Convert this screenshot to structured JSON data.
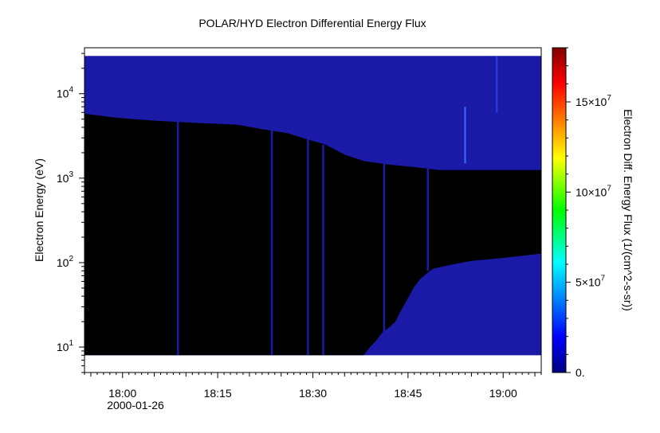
{
  "chart_data": {
    "type": "heatmap",
    "title": "POLAR/HYD  Electron Differential Energy Flux",
    "xlabel": "",
    "ylabel": "Electron Energy (eV)",
    "date_label": "2000-01-26",
    "x_range": [
      "17:54",
      "19:06"
    ],
    "x_ticks": [
      "18:00",
      "18:15",
      "18:30",
      "18:45",
      "19:00"
    ],
    "y_scale": "log",
    "y_range": [
      5,
      35000
    ],
    "y_ticks": [
      {
        "value": 10,
        "base": "10",
        "exp": "1"
      },
      {
        "value": 100,
        "base": "10",
        "exp": "2"
      },
      {
        "value": 1000,
        "base": "10",
        "exp": "3"
      },
      {
        "value": 10000,
        "base": "10",
        "exp": "4"
      }
    ],
    "energy_range_ev": [
      8,
      28000
    ],
    "colorbar": {
      "label": "Electron Diff. Energy Flux (1/(cm^2-s-sr))",
      "range": [
        0,
        180000000
      ],
      "colormap": "jet",
      "ticks": [
        {
          "value": 0,
          "base": "0.",
          "exp": ""
        },
        {
          "value": 50000000,
          "base": "5×10",
          "exp": "7"
        },
        {
          "value": 100000000,
          "base": "10×10",
          "exp": "7"
        },
        {
          "value": 150000000,
          "base": "15×10",
          "exp": "7"
        }
      ]
    },
    "background_flux_color": "#1a1aa6",
    "no_data_color": "#000000",
    "no_data_upper_boundary_ev": [
      [
        "17:54",
        5800
      ],
      [
        "17:59",
        5200
      ],
      [
        "18:05",
        4800
      ],
      [
        "18:12",
        4500
      ],
      [
        "18:18",
        4300
      ],
      [
        "18:22",
        3800
      ],
      [
        "18:26",
        3400
      ],
      [
        "18:29",
        2900
      ],
      [
        "18:32",
        2500
      ],
      [
        "18:35",
        1900
      ],
      [
        "18:38",
        1600
      ],
      [
        "18:42",
        1450
      ],
      [
        "18:46",
        1350
      ],
      [
        "18:50",
        1250
      ],
      [
        "18:55",
        1250
      ],
      [
        "19:00",
        1250
      ],
      [
        "19:06",
        1250
      ]
    ],
    "no_data_lower_boundary_ev": [
      [
        "17:54",
        8
      ],
      [
        "18:38",
        8
      ],
      [
        "18:39",
        10
      ],
      [
        "18:40",
        12
      ],
      [
        "18:41",
        15
      ],
      [
        "18:42",
        17
      ],
      [
        "18:43",
        20
      ],
      [
        "18:44",
        28
      ],
      [
        "18:45",
        38
      ],
      [
        "18:46",
        52
      ],
      [
        "18:47",
        65
      ],
      [
        "18:48",
        75
      ],
      [
        "18:49",
        85
      ],
      [
        "18:50",
        88
      ],
      [
        "18:52",
        95
      ],
      [
        "18:55",
        105
      ],
      [
        "18:58",
        110
      ],
      [
        "19:02",
        118
      ],
      [
        "19:06",
        128
      ]
    ],
    "spikes": [
      {
        "time": "18:08.7",
        "lo_ev": 8,
        "hi_ev": 5000
      },
      {
        "time": "18:23.5",
        "lo_ev": 8,
        "hi_ev": 4500
      },
      {
        "time": "18:29.2",
        "lo_ev": 8,
        "hi_ev": 2900
      },
      {
        "time": "18:31.6",
        "lo_ev": 8,
        "hi_ev": 2500
      },
      {
        "time": "18:41.2",
        "lo_ev": 12,
        "hi_ev": 1500
      },
      {
        "time": "18:48.1",
        "lo_ev": 80,
        "hi_ev": 1300
      }
    ],
    "bright_streaks": [
      {
        "time": "18:54",
        "lo_ev": 1500,
        "hi_ev": 7000,
        "flux": 30000000
      },
      {
        "time": "18:59",
        "lo_ev": 6000,
        "hi_ev": 28000,
        "flux": 20000000
      }
    ]
  }
}
